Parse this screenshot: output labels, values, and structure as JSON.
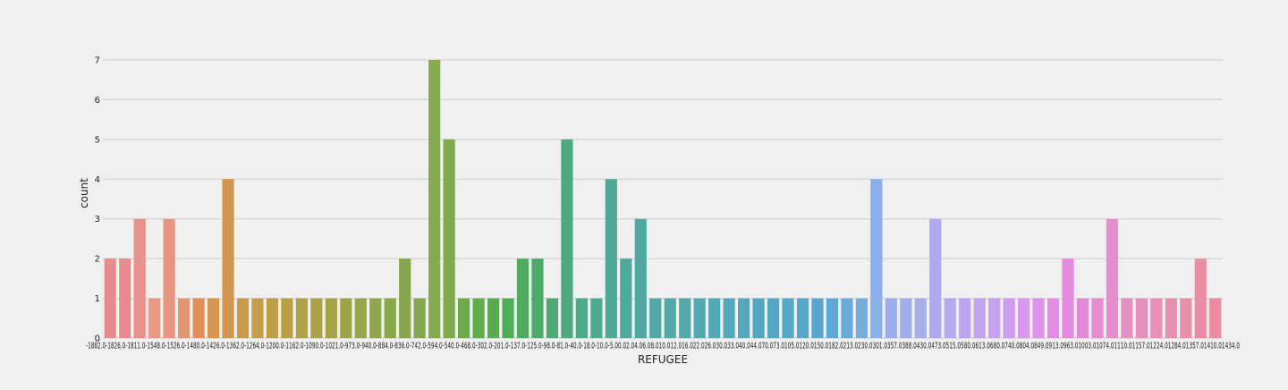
{
  "chart_data": {
    "type": "bar",
    "xlabel": "REFUGEE",
    "ylabel": "count",
    "ylim": [
      0,
      7
    ],
    "yticks": [
      0,
      1,
      2,
      3,
      4,
      5,
      6,
      7
    ],
    "grid": true,
    "categories": [
      "-1882.0",
      "-1826.0",
      "-1811.0",
      "-1548.0",
      "-1526.0",
      "-1480.0",
      "-1426.0",
      "-1362.0",
      "-1264.0",
      "-1200.0",
      "-1162.0",
      "-1090.0",
      "-1021.0",
      "-973.0",
      "-940.0",
      "-884.0",
      "-836.0",
      "-742.0",
      "-594.0",
      "-540.0",
      "-468.0",
      "-302.0",
      "-201.0",
      "-137.0",
      "-125.0",
      "-98.0",
      "-81.0",
      "-40.0",
      "-18.0",
      "-10.0",
      "-5.0",
      "0.0",
      "2.0",
      "4.0",
      "6.0",
      "8.0",
      "10.0",
      "12.0",
      "16.0",
      "22.0",
      "26.0",
      "30.0",
      "33.0",
      "40.0",
      "44.0",
      "70.0",
      "73.0",
      "105.0",
      "120.0",
      "150.0",
      "182.0",
      "213.0",
      "230.0",
      "301.0",
      "357.0",
      "388.0",
      "430.0",
      "473.0",
      "515.0",
      "580.0",
      "613.0",
      "680.0",
      "740.0",
      "804.0",
      "849.0",
      "913.0",
      "963.0",
      "1003.0",
      "1074.0",
      "1110.0",
      "1157.0",
      "1224.0",
      "1284.0",
      "1357.0",
      "1410.0",
      "1434.0"
    ],
    "tick_labels_full": "-1882.0-1826.0-1811.0-1548.0-1526.0-1480.0-1426.0-1362.0-1264.0-1200.0-1162.0-1090.0-1021.0-973.0-940.0-884.0-836.0-742.0-594.0-540.0-468.0-302.0-201.0-137.0-125.0-98.0-81.0-40.0-18.0-10.0-5.00.02.04.06.08.010.012.016.022.026.030.033.040.044.070.073.0105.0120.0150.0182.0213.0230.0301.0357.0388.0430.0473.0515.0580.0613.0680.0740.0804.0849.0913.0963.01003.01074.01110.01157.01224.01284.01357.01410.01434.0",
    "values": [
      2,
      2,
      3,
      1,
      3,
      1,
      1,
      1,
      4,
      1,
      1,
      1,
      1,
      1,
      1,
      1,
      1,
      1,
      1,
      1,
      2,
      1,
      7,
      5,
      1,
      1,
      1,
      1,
      2,
      2,
      1,
      5,
      1,
      1,
      4,
      2,
      3,
      1,
      1,
      1,
      1,
      1,
      1,
      1,
      1,
      1,
      1,
      1,
      1,
      1,
      1,
      1,
      4,
      1,
      1,
      1,
      3,
      1,
      1,
      1,
      1,
      1,
      1,
      1,
      1,
      2,
      1,
      1,
      3,
      1,
      1,
      1,
      1,
      1,
      2,
      1
    ],
    "colors": [
      "#e88b8e",
      "#e88b8e",
      "#e89189",
      "#e89985",
      "#e89480",
      "#e49670",
      "#e08f5a",
      "#d89650",
      "#d29550",
      "#c9994c",
      "#c49f4a",
      "#be9f48",
      "#b9a046",
      "#b2a046",
      "#aba146",
      "#a5a247",
      "#9ea447",
      "#96a648",
      "#8fa849",
      "#88a84b",
      "#86a64e",
      "#84a84c",
      "#86ab4c",
      "#7fab4c",
      "#6ea94b",
      "#62ac4d",
      "#55ad4f",
      "#4ead55",
      "#4fab5f",
      "#4daa6a",
      "#4daa74",
      "#4daa7e",
      "#4daa86",
      "#4daa8e",
      "#4da996",
      "#4ea99c",
      "#4fa9a1",
      "#50a9a6",
      "#51a9aa",
      "#51a9ae",
      "#52a9b2",
      "#52a8b5",
      "#53a8b9",
      "#53a8bd",
      "#54a7c0",
      "#55a7c4",
      "#56a7c8",
      "#57a7cc",
      "#58a7d0",
      "#5ea8d6",
      "#6aaadb",
      "#76aedf",
      "#8aaee8",
      "#9aaeea",
      "#a2aeec",
      "#a8aeee",
      "#b0a8ee",
      "#b4aaee",
      "#bba7ee",
      "#c2a4ee",
      "#c9a0ee",
      "#d29cec",
      "#d998ea",
      "#df93e8",
      "#e28ee6",
      "#e48ae1",
      "#e28ad8",
      "#e68cd2",
      "#e78dcc",
      "#e68fc4",
      "#e68fbc",
      "#e78fb6",
      "#e88fb0",
      "#e88faa",
      "#e88da4",
      "#e88c9e"
    ]
  }
}
